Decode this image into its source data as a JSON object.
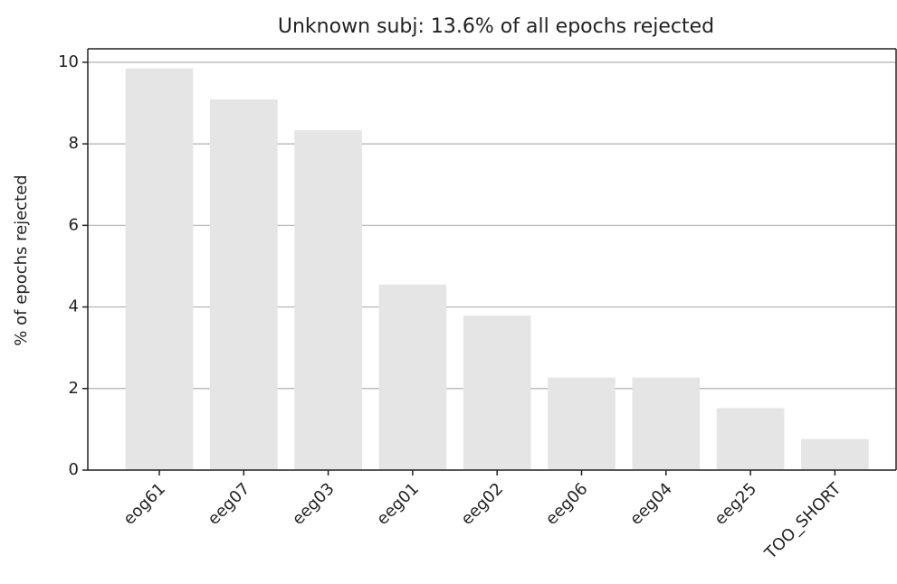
{
  "chart_data": {
    "type": "bar",
    "title": "Unknown subj: 13.6% of all epochs rejected",
    "y_label": "% of epochs rejected",
    "categories": [
      "eog61",
      "eeg07",
      "eeg03",
      "eeg01",
      "eeg02",
      "eeg06",
      "eeg04",
      "eeg25",
      "TOO_SHORT"
    ],
    "values": [
      9.85,
      9.09,
      8.33,
      4.55,
      3.79,
      2.27,
      2.27,
      1.52,
      0.76
    ],
    "color": "#e5e5e5",
    "ylim": [
      0,
      10.33
    ],
    "yticks": [
      0,
      2,
      4,
      6,
      8,
      10
    ],
    "grid": true
  }
}
